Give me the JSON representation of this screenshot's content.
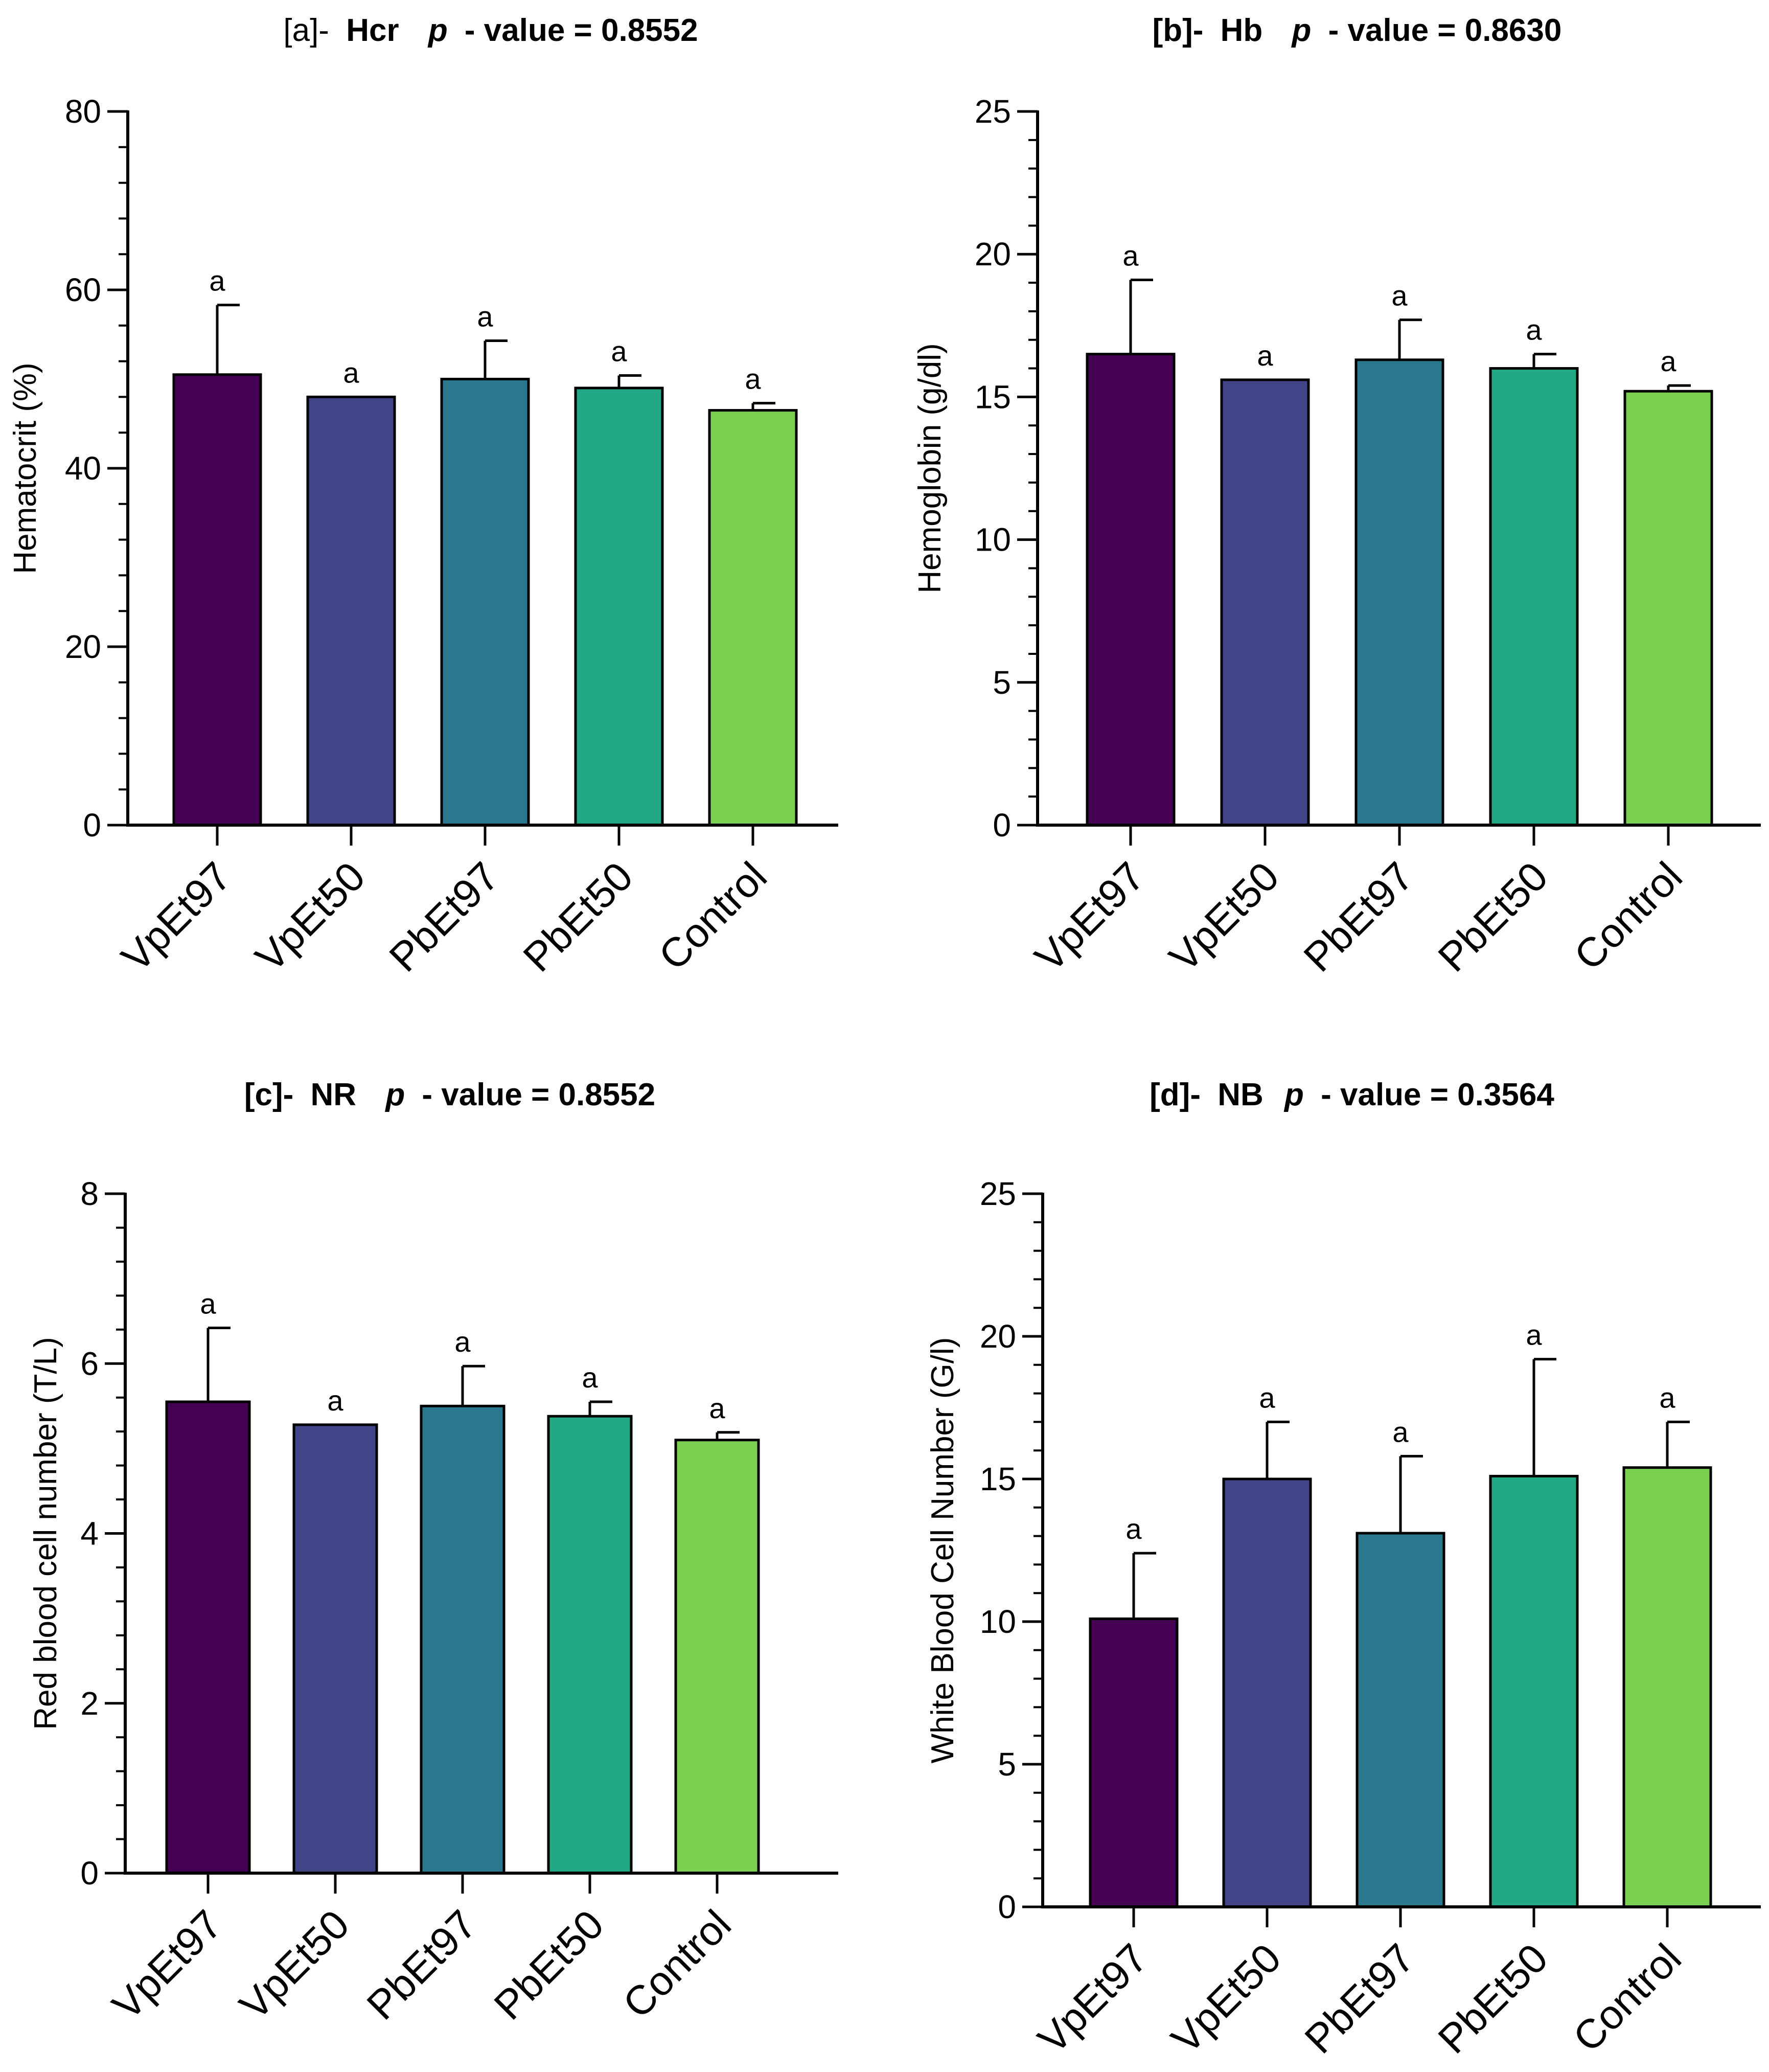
{
  "chart_data": [
    {
      "id": "a",
      "type": "bar",
      "title": {
        "prefix": "[a]-",
        "variable": "Hcr",
        "p_symbol": "p",
        "p_text": "- value = 0.8552"
      },
      "xlabel": "",
      "ylabel": "Hematocrit (%)",
      "ylim": [
        0,
        80
      ],
      "yticks": [
        0,
        20,
        40,
        60,
        80
      ],
      "yticks_labeled": [
        0,
        20,
        40,
        60,
        80
      ],
      "minor_step": 4,
      "categories": [
        "VpEt97",
        "VpEt50",
        "PbEt97",
        "PbEt50",
        "Control"
      ],
      "values": [
        50.5,
        48.0,
        50.0,
        49.0,
        46.5
      ],
      "errors": [
        7.8,
        0.0,
        4.3,
        1.4,
        0.8
      ],
      "significance": [
        "a",
        "a",
        "a",
        "a",
        "a"
      ],
      "colors": [
        "#440154",
        "#414487",
        "#2a788e",
        "#22a884",
        "#7ad151"
      ]
    },
    {
      "id": "b",
      "type": "bar",
      "title": {
        "prefix": "[b]-",
        "variable": "Hb",
        "p_symbol": "p",
        "p_text": "- value = 0.8630"
      },
      "xlabel": "",
      "ylabel": "Hemoglobin (g/dl)",
      "ylim": [
        0,
        25
      ],
      "yticks": [
        0,
        5,
        10,
        15,
        20,
        25
      ],
      "yticks_labeled": [
        0,
        5,
        10,
        15,
        20,
        25
      ],
      "minor_step": 1,
      "categories": [
        "VpEt97",
        "VpEt50",
        "PbEt97",
        "PbEt50",
        "Control"
      ],
      "values": [
        16.5,
        15.6,
        16.3,
        16.0,
        15.2
      ],
      "errors": [
        2.6,
        0.0,
        1.4,
        0.5,
        0.2
      ],
      "significance": [
        "a",
        "a",
        "a",
        "a",
        "a"
      ],
      "colors": [
        "#440154",
        "#414487",
        "#2a788e",
        "#22a884",
        "#7ad151"
      ]
    },
    {
      "id": "c",
      "type": "bar",
      "title": {
        "prefix": "[c]-",
        "variable": "NR",
        "p_symbol": "p",
        "p_text": "- value = 0.8552"
      },
      "xlabel": "",
      "ylabel": "Red blood cell number (T/L)",
      "ylim": [
        0,
        8
      ],
      "yticks": [
        0,
        2,
        4,
        6,
        8
      ],
      "yticks_labeled": [
        0,
        2,
        4,
        6,
        8
      ],
      "minor_step": 0.4,
      "categories": [
        "VpEt97",
        "VpEt50",
        "PbEt97",
        "PbEt50",
        "Control"
      ],
      "values": [
        5.55,
        5.28,
        5.5,
        5.38,
        5.1
      ],
      "errors": [
        0.87,
        0.0,
        0.47,
        0.17,
        0.09
      ],
      "significance": [
        "a",
        "a",
        "a",
        "a",
        "a"
      ],
      "colors": [
        "#440154",
        "#414487",
        "#2a788e",
        "#22a884",
        "#7ad151"
      ]
    },
    {
      "id": "d",
      "type": "bar",
      "title": {
        "prefix": "[d]-",
        "variable": "NB",
        "p_symbol": "p",
        "p_text": "- value = 0.3564"
      },
      "xlabel": "",
      "ylabel": "White Blood Cell Number (G/l)",
      "ylim": [
        0,
        25
      ],
      "yticks": [
        0,
        5,
        10,
        15,
        20,
        25
      ],
      "yticks_labeled": [
        0,
        5,
        10,
        15,
        20,
        25
      ],
      "minor_step": 1,
      "categories": [
        "VpEt97",
        "VpEt50",
        "PbEt97",
        "PbEt50",
        "Control"
      ],
      "values": [
        10.1,
        15.0,
        13.1,
        15.1,
        15.4
      ],
      "errors": [
        2.3,
        2.0,
        2.7,
        4.1,
        1.6
      ],
      "significance": [
        "a",
        "a",
        "a",
        "a",
        "a"
      ],
      "colors": [
        "#440154",
        "#414487",
        "#2a788e",
        "#22a884",
        "#7ad151"
      ]
    }
  ]
}
